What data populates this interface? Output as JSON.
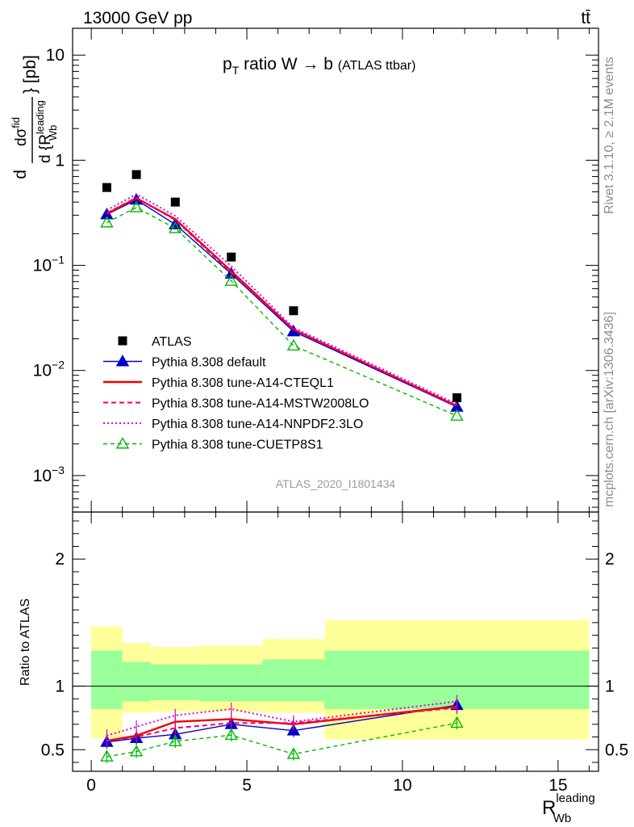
{
  "header": {
    "energy_label": "13000 GeV pp",
    "process_label": "tt̄"
  },
  "side_labels": {
    "rivet": "Rivet 3.1.10, ≥ 2.1M events",
    "mcplots": "mcplots.cern.ch [arXiv:1306.3436]"
  },
  "chart_data": {
    "type": "line",
    "title": "pT ratio W → b (ATLAS ttbar)",
    "title_parts": {
      "p": "p",
      "sub": "T",
      "rest": " ratio W → b ",
      "small": "(ATLAS ttbar)"
    },
    "analysis_label": "ATLAS_2020_I1801434",
    "xlabel": {
      "main": "R",
      "sup": "leading",
      "sub": "Wb"
    },
    "ylabel_top": {
      "num_d": "d",
      "num_sigma": "dσ",
      "num_sup": "fid",
      "den": "d {R",
      "den_sup": "leading",
      "den_sub": "Wb",
      "unit": "} [pb]"
    },
    "ylabel_bottom": "Ratio to ATLAS",
    "xlim": [
      -0.6,
      16.3
    ],
    "ylim_top": [
      0.00045,
      18
    ],
    "ylim_bottom": [
      0.33,
      2.37
    ],
    "log_y_top": true,
    "x_ticks": [
      0,
      5,
      10,
      15
    ],
    "y_ticks_top": [
      {
        "v": 10,
        "base": "10",
        "exp": ""
      },
      {
        "v": 1,
        "base": "1",
        "exp": ""
      },
      {
        "v": 0.1,
        "base": "10",
        "exp": "−1"
      },
      {
        "v": 0.01,
        "base": "10",
        "exp": "−2"
      },
      {
        "v": 0.001,
        "base": "10",
        "exp": "−3"
      }
    ],
    "y_ticks_bottom": [
      0.5,
      1,
      2
    ],
    "bins": [
      [
        0,
        1
      ],
      [
        1,
        1.9
      ],
      [
        1.9,
        3.5
      ],
      [
        3.5,
        5.5
      ],
      [
        5.5,
        7.5
      ],
      [
        7.5,
        16
      ]
    ],
    "x": [
      0.5,
      1.45,
      2.7,
      4.5,
      6.5,
      11.75
    ],
    "atlas": [
      0.55,
      0.73,
      0.4,
      0.12,
      0.037,
      0.0055
    ],
    "series": [
      {
        "name": "Pythia 8.308 default",
        "color": "#0000cc",
        "dash": "",
        "width": 1.4,
        "marker": "tri_filled",
        "values": [
          0.305,
          0.42,
          0.245,
          0.083,
          0.0235,
          0.0045
        ],
        "ratio": [
          0.56,
          0.59,
          0.62,
          0.7,
          0.65,
          0.85
        ]
      },
      {
        "name": "Pythia 8.308 tune-A14-CTEQL1",
        "color": "#ee0000",
        "dash": "",
        "width": 2.4,
        "marker": "",
        "values": [
          0.31,
          0.435,
          0.275,
          0.088,
          0.0245,
          0.0046
        ],
        "ratio": [
          0.57,
          0.61,
          0.72,
          0.74,
          0.7,
          0.84
        ]
      },
      {
        "name": "Pythia 8.308 tune-A14-MSTW2008LO",
        "color": "#ee0066",
        "dash": "6,4",
        "width": 2.0,
        "marker": "",
        "values": [
          0.315,
          0.44,
          0.27,
          0.085,
          0.0245,
          0.0046
        ],
        "ratio": [
          0.57,
          0.6,
          0.67,
          0.71,
          0.71,
          0.83
        ]
      },
      {
        "name": "Pythia 8.308 tune-A14-NNPDF2.3LO",
        "color": "#dd00dd",
        "dash": "2,3",
        "width": 2.0,
        "marker": "",
        "values": [
          0.335,
          0.475,
          0.295,
          0.098,
          0.0255,
          0.0048
        ],
        "ratio": [
          0.61,
          0.68,
          0.77,
          0.82,
          0.72,
          0.88
        ]
      },
      {
        "name": "Pythia 8.308 tune-CUETP8S1",
        "color": "#00bb00",
        "dash": "5,4",
        "width": 1.4,
        "marker": "tri_open",
        "values": [
          0.255,
          0.355,
          0.225,
          0.071,
          0.0172,
          0.0037
        ],
        "ratio": [
          0.445,
          0.485,
          0.565,
          0.615,
          0.465,
          0.71
        ]
      }
    ],
    "band_yellow": [
      [
        0.59,
        1.47
      ],
      [
        0.79,
        1.34
      ],
      [
        0.8,
        1.31
      ],
      [
        0.8,
        1.32
      ],
      [
        0.79,
        1.37
      ],
      [
        0.58,
        1.52
      ]
    ],
    "band_green": [
      [
        0.82,
        1.28
      ],
      [
        0.88,
        1.19
      ],
      [
        0.89,
        1.17
      ],
      [
        0.88,
        1.17
      ],
      [
        0.88,
        1.21
      ],
      [
        0.82,
        1.28
      ]
    ],
    "legend_atlas_label": "ATLAS",
    "legend_position": "bottom-left"
  }
}
